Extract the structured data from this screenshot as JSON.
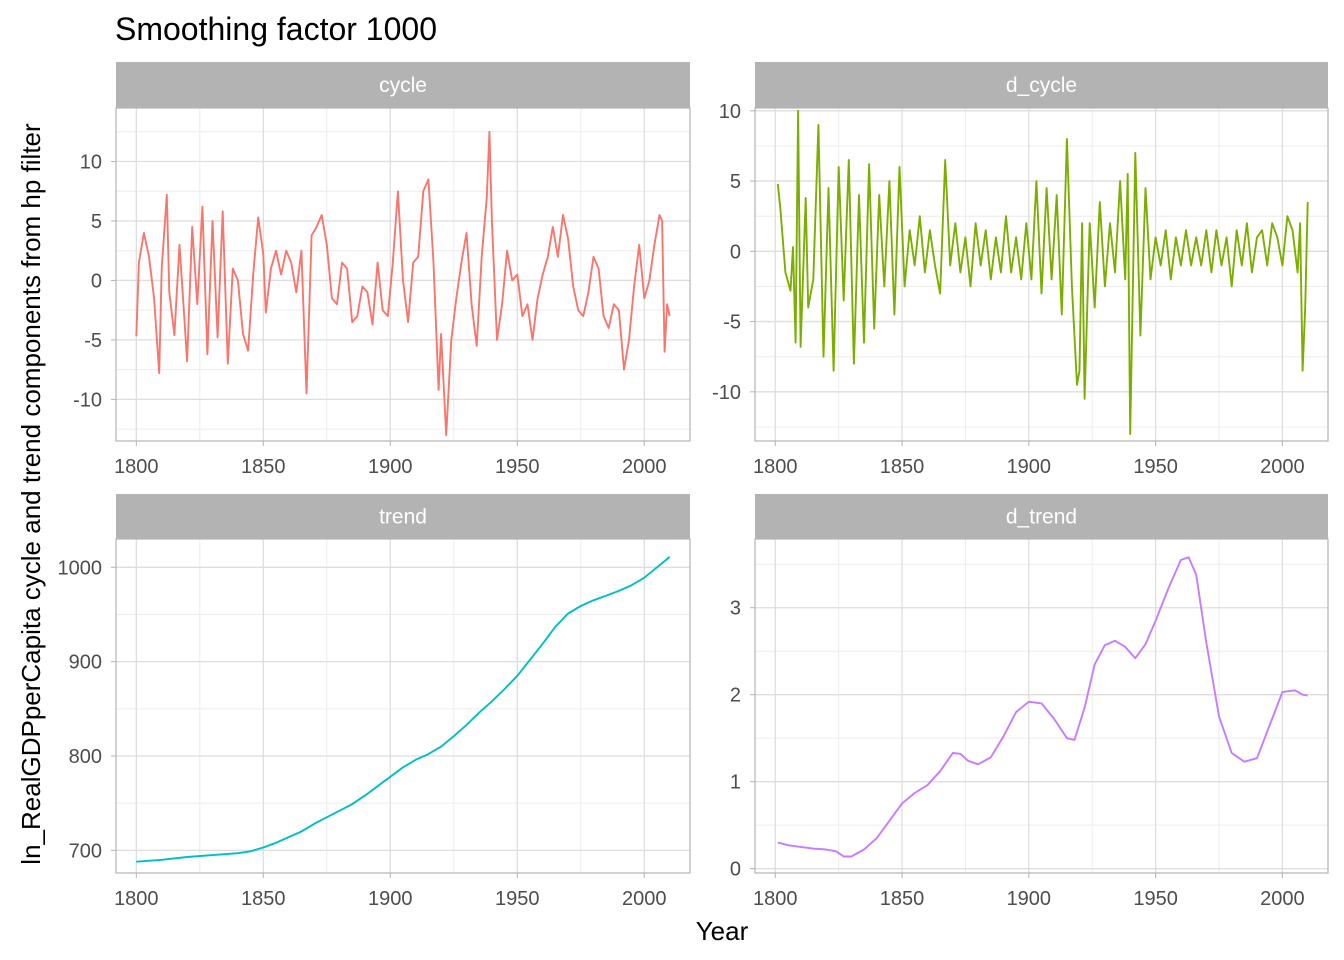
{
  "chart_data": {
    "type": "line",
    "title": "Smoothing factor 1000",
    "xlabel": "Year",
    "ylabel": "ln_RealGDPperCapita cycle and trend components from hp filter",
    "grid": true,
    "legend": "none",
    "panels": [
      {
        "name": "cycle",
        "color": "#F8766D",
        "xlim": [
          1792,
          2018
        ],
        "ylim": [
          -13.5,
          14.5
        ],
        "x_ticks": [
          1800,
          1850,
          1900,
          1950,
          2000
        ],
        "y_ticks": [
          -10,
          -5,
          0,
          5,
          10
        ],
        "x": [
          1800,
          1801,
          1803,
          1805,
          1807,
          1809,
          1810,
          1812,
          1813,
          1815,
          1817,
          1819,
          1820,
          1822,
          1824,
          1826,
          1828,
          1830,
          1832,
          1834,
          1836,
          1838,
          1840,
          1842,
          1844,
          1846,
          1848,
          1850,
          1851,
          1853,
          1855,
          1857,
          1859,
          1861,
          1863,
          1865,
          1867,
          1869,
          1871,
          1873,
          1875,
          1877,
          1879,
          1881,
          1883,
          1885,
          1887,
          1889,
          1891,
          1893,
          1895,
          1897,
          1899,
          1901,
          1903,
          1905,
          1907,
          1909,
          1911,
          1913,
          1915,
          1917,
          1919,
          1920,
          1922,
          1924,
          1926,
          1928,
          1930,
          1932,
          1934,
          1936,
          1938,
          1939,
          1940,
          1942,
          1944,
          1946,
          1948,
          1950,
          1952,
          1954,
          1956,
          1958,
          1960,
          1962,
          1964,
          1966,
          1968,
          1970,
          1972,
          1974,
          1976,
          1978,
          1980,
          1982,
          1984,
          1986,
          1988,
          1990,
          1992,
          1994,
          1996,
          1998,
          2000,
          2002,
          2004,
          2006,
          2007,
          2008,
          2009,
          2010
        ],
        "values": [
          -4.7,
          1.5,
          4.0,
          2.0,
          -1.5,
          -7.8,
          1.0,
          7.2,
          -1.0,
          -4.6,
          3.0,
          -3.5,
          -6.8,
          4.5,
          -2.0,
          6.2,
          -6.2,
          5.0,
          -4.8,
          5.8,
          -7.0,
          1.0,
          0.0,
          -4.5,
          -5.9,
          0.5,
          5.3,
          2.2,
          -2.7,
          1.0,
          2.5,
          0.5,
          2.5,
          1.5,
          -1.0,
          2.5,
          -9.5,
          3.8,
          4.5,
          5.5,
          3.0,
          -1.5,
          -2.0,
          1.5,
          1.0,
          -3.5,
          -3.0,
          -0.5,
          -1.0,
          -3.7,
          1.5,
          -2.5,
          -3.0,
          1.5,
          7.5,
          0.0,
          -3.5,
          1.5,
          2.0,
          7.5,
          8.5,
          1.5,
          -9.2,
          -4.5,
          -13.0,
          -5.0,
          -1.5,
          1.5,
          4.0,
          -2.0,
          -5.5,
          2.0,
          7.0,
          12.5,
          5.0,
          -5.0,
          -2.0,
          2.5,
          0.0,
          0.5,
          -3.0,
          -2.0,
          -5.0,
          -1.5,
          0.5,
          2.0,
          4.5,
          2.0,
          5.5,
          3.5,
          -0.5,
          -2.5,
          -3.0,
          -1.0,
          2.0,
          1.0,
          -3.0,
          -4.0,
          -2.0,
          -2.5,
          -7.5,
          -5.0,
          -0.5,
          3.0,
          -1.5,
          0.0,
          3.0,
          5.5,
          5.0,
          -6.0,
          -2.0,
          -3.0
        ]
      },
      {
        "name": "d_cycle",
        "color": "#7CAE00",
        "xlim": [
          1792,
          2018
        ],
        "ylim": [
          -13.5,
          10.2
        ],
        "x_ticks": [
          1800,
          1850,
          1900,
          1950,
          2000
        ],
        "y_ticks": [
          -10,
          -5,
          0,
          5,
          10
        ],
        "x": [
          1801,
          1802,
          1804,
          1806,
          1807,
          1808,
          1809,
          1810,
          1812,
          1813,
          1815,
          1817,
          1819,
          1821,
          1823,
          1825,
          1827,
          1829,
          1831,
          1833,
          1835,
          1837,
          1839,
          1841,
          1843,
          1845,
          1847,
          1849,
          1851,
          1853,
          1855,
          1857,
          1859,
          1861,
          1863,
          1865,
          1867,
          1869,
          1871,
          1873,
          1875,
          1877,
          1879,
          1881,
          1883,
          1885,
          1887,
          1889,
          1891,
          1893,
          1895,
          1897,
          1899,
          1901,
          1903,
          1905,
          1907,
          1909,
          1911,
          1913,
          1915,
          1917,
          1919,
          1920,
          1921,
          1922,
          1924,
          1926,
          1928,
          1930,
          1932,
          1934,
          1936,
          1938,
          1939,
          1940,
          1942,
          1944,
          1946,
          1948,
          1950,
          1952,
          1954,
          1956,
          1958,
          1960,
          1962,
          1964,
          1966,
          1968,
          1970,
          1972,
          1974,
          1976,
          1978,
          1980,
          1982,
          1984,
          1986,
          1988,
          1990,
          1992,
          1994,
          1996,
          1998,
          2000,
          2002,
          2004,
          2006,
          2007,
          2008,
          2009,
          2010
        ],
        "values": [
          4.8,
          3.0,
          -1.5,
          -2.8,
          0.3,
          -6.5,
          10.0,
          -6.8,
          3.8,
          -4.0,
          -2.0,
          9.0,
          -7.5,
          4.5,
          -8.5,
          6.0,
          -3.5,
          6.5,
          -8.0,
          4.0,
          -6.5,
          6.2,
          -5.5,
          4.0,
          -2.5,
          5.0,
          -4.5,
          6.0,
          -2.5,
          1.5,
          -1.0,
          2.5,
          -1.5,
          1.5,
          -1.0,
          -3.0,
          6.5,
          -1.0,
          2.0,
          -1.5,
          1.0,
          -2.5,
          2.0,
          -1.0,
          1.5,
          -2.0,
          1.0,
          -1.5,
          2.5,
          -1.5,
          1.0,
          -2.0,
          2.0,
          -2.0,
          5.0,
          -3.0,
          4.5,
          -2.0,
          4.0,
          -4.5,
          8.0,
          -2.5,
          -9.5,
          -8.5,
          2.0,
          -10.5,
          2.0,
          -4.0,
          3.5,
          -2.5,
          2.0,
          -1.5,
          5.0,
          -2.0,
          5.5,
          -13.0,
          7.0,
          -6.0,
          4.5,
          -2.0,
          1.0,
          -1.0,
          1.5,
          -2.0,
          1.0,
          -1.0,
          1.5,
          -1.0,
          1.0,
          -1.0,
          1.5,
          -1.5,
          1.5,
          -1.0,
          1.0,
          -2.5,
          1.5,
          -1.0,
          2.0,
          -1.5,
          1.0,
          1.5,
          -1.0,
          2.0,
          1.0,
          -1.0,
          2.5,
          1.5,
          -1.5,
          2.0,
          -8.5,
          -4.0,
          3.5
        ]
      },
      {
        "name": "trend",
        "color": "#00BFC4",
        "xlim": [
          1792,
          2018
        ],
        "ylim": [
          676,
          1030
        ],
        "x_ticks": [
          1800,
          1850,
          1900,
          1950,
          2000
        ],
        "y_ticks": [
          700,
          800,
          900,
          1000
        ],
        "x": [
          1800,
          1810,
          1820,
          1830,
          1840,
          1845,
          1850,
          1855,
          1860,
          1865,
          1870,
          1875,
          1880,
          1885,
          1890,
          1895,
          1900,
          1905,
          1910,
          1915,
          1920,
          1925,
          1930,
          1935,
          1940,
          1945,
          1950,
          1955,
          1960,
          1965,
          1970,
          1975,
          1980,
          1985,
          1990,
          1995,
          2000,
          2005,
          2010
        ],
        "values": [
          688,
          690,
          693,
          695,
          697,
          699,
          703,
          708,
          714,
          720,
          728,
          735,
          742,
          749,
          758,
          768,
          778,
          788,
          796,
          802,
          810,
          821,
          833,
          846,
          858,
          871,
          885,
          902,
          919,
          937,
          951,
          959,
          965,
          970,
          975,
          981,
          989,
          1000,
          1011
        ]
      },
      {
        "name": "d_trend",
        "color": "#C77CFF",
        "xlim": [
          1792,
          2018
        ],
        "ylim": [
          -0.05,
          3.79
        ],
        "x_ticks": [
          1800,
          1850,
          1900,
          1950,
          2000
        ],
        "y_ticks": [
          0,
          1,
          2,
          3
        ],
        "x": [
          1801,
          1805,
          1810,
          1815,
          1820,
          1824,
          1827,
          1830,
          1835,
          1840,
          1845,
          1850,
          1855,
          1860,
          1865,
          1870,
          1873,
          1876,
          1880,
          1885,
          1890,
          1895,
          1900,
          1905,
          1910,
          1915,
          1918,
          1922,
          1926,
          1930,
          1934,
          1938,
          1942,
          1946,
          1950,
          1955,
          1960,
          1963,
          1966,
          1970,
          1975,
          1980,
          1985,
          1990,
          1995,
          2000,
          2005,
          2008,
          2010
        ],
        "values": [
          0.3,
          0.27,
          0.25,
          0.23,
          0.22,
          0.2,
          0.14,
          0.14,
          0.22,
          0.35,
          0.55,
          0.75,
          0.87,
          0.96,
          1.12,
          1.33,
          1.32,
          1.24,
          1.2,
          1.28,
          1.52,
          1.8,
          1.92,
          1.9,
          1.72,
          1.5,
          1.48,
          1.85,
          2.35,
          2.57,
          2.62,
          2.55,
          2.42,
          2.58,
          2.85,
          3.22,
          3.55,
          3.58,
          3.38,
          2.6,
          1.75,
          1.33,
          1.23,
          1.27,
          1.65,
          2.03,
          2.05,
          2.0,
          1.99
        ]
      }
    ]
  }
}
